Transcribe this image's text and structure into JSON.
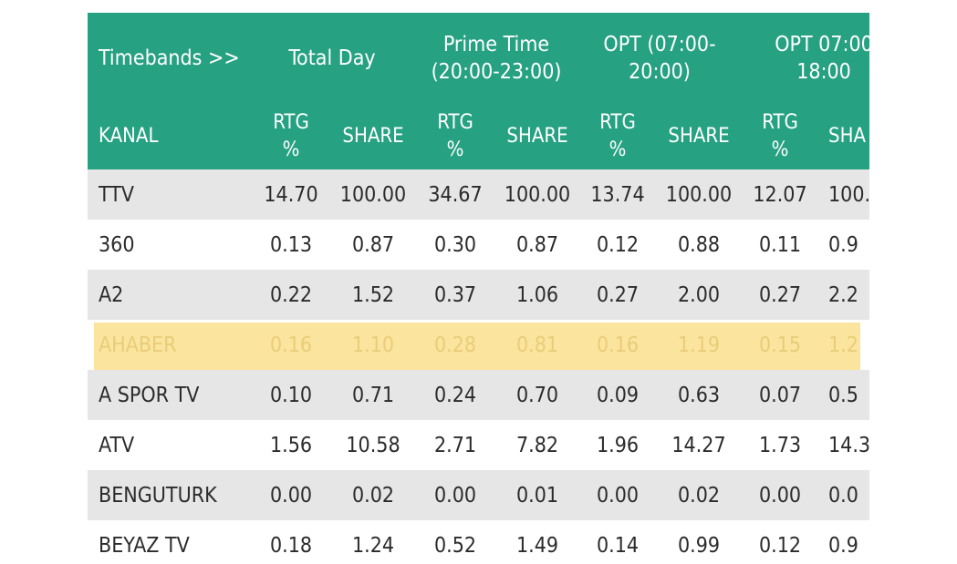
{
  "table": {
    "band_label": "Timebands >>",
    "bands": [
      "Total Day",
      "Prime Time\n(20:00-23:00)",
      "OPT (07:00-\n20:00)",
      "OPT 07:00\n18:00"
    ],
    "kanal_label": "KANAL",
    "metric_labels": [
      "RTG\n%",
      "SHARE",
      "RTG\n%",
      "SHARE",
      "RTG\n%",
      "SHARE",
      "RTG\n%",
      "SHA"
    ],
    "rows": [
      {
        "name": "TTV",
        "values": [
          "14.70",
          "100.00",
          "34.67",
          "100.00",
          "13.74",
          "100.00",
          "12.07",
          "100."
        ]
      },
      {
        "name": "360",
        "values": [
          "0.13",
          "0.87",
          "0.30",
          "0.87",
          "0.12",
          "0.88",
          "0.11",
          "0.9"
        ]
      },
      {
        "name": "A2",
        "values": [
          "0.22",
          "1.52",
          "0.37",
          "1.06",
          "0.27",
          "2.00",
          "0.27",
          "2.2"
        ]
      },
      {
        "name": "AHABER",
        "values": [
          "0.16",
          "1.10",
          "0.28",
          "0.81",
          "0.16",
          "1.19",
          "0.15",
          "1.2"
        ]
      },
      {
        "name": "A SPOR TV",
        "values": [
          "0.10",
          "0.71",
          "0.24",
          "0.70",
          "0.09",
          "0.63",
          "0.07",
          "0.5"
        ]
      },
      {
        "name": "ATV",
        "values": [
          "1.56",
          "10.58",
          "2.71",
          "7.82",
          "1.96",
          "14.27",
          "1.73",
          "14.3"
        ]
      },
      {
        "name": "BENGUTURK",
        "values": [
          "0.00",
          "0.02",
          "0.00",
          "0.01",
          "0.00",
          "0.02",
          "0.00",
          "0.0"
        ]
      },
      {
        "name": "BEYAZ TV",
        "values": [
          "0.18",
          "1.24",
          "0.52",
          "1.49",
          "0.14",
          "0.99",
          "0.12",
          "0.9"
        ]
      }
    ],
    "highlighted_row": "AHABER"
  },
  "colors": {
    "header_bg": "#26a182",
    "row_shade": "#e6e6e6",
    "highlight": "#fadc82"
  }
}
